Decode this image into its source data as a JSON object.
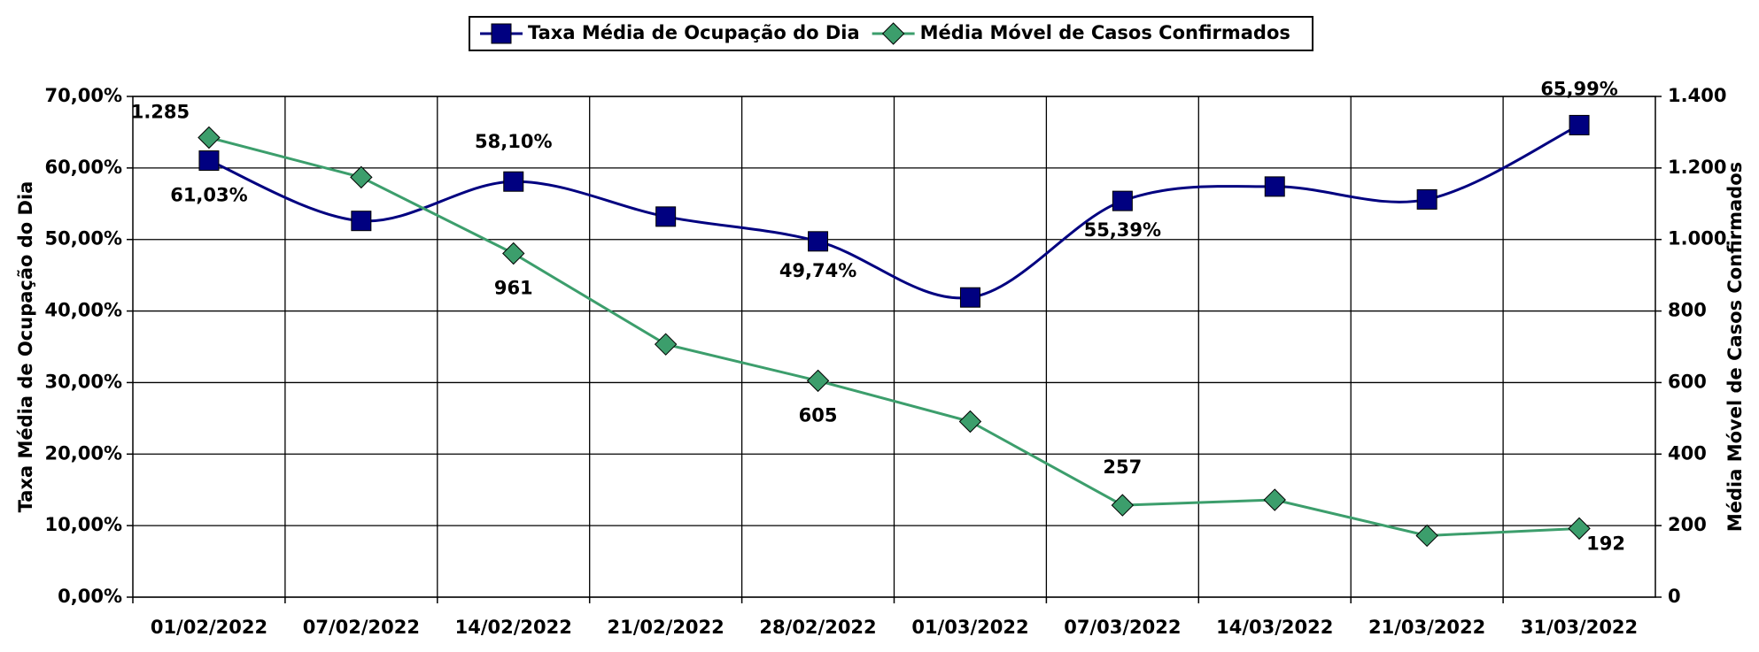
{
  "chart_data": {
    "type": "line",
    "legend": "top",
    "grid": true,
    "categories": [
      "01/02/2022",
      "07/02/2022",
      "14/02/2022",
      "21/02/2022",
      "28/02/2022",
      "01/03/2022",
      "07/03/2022",
      "14/03/2022",
      "21/03/2022",
      "31/03/2022"
    ],
    "y_label": "Taxa Média de Ocupação do Dia",
    "y2_label": "Média Móvel de Casos Confirmados",
    "ylim": [
      0,
      70
    ],
    "yticks": [
      {
        "value": 0,
        "label": "0,00%"
      },
      {
        "value": 10,
        "label": "10,00%"
      },
      {
        "value": 20,
        "label": "20,00%"
      },
      {
        "value": 30,
        "label": "30,00%"
      },
      {
        "value": 40,
        "label": "40,00%"
      },
      {
        "value": 50,
        "label": "50,00%"
      },
      {
        "value": 60,
        "label": "60,00%"
      },
      {
        "value": 70,
        "label": "70,00%"
      }
    ],
    "y2lim": [
      0,
      1400
    ],
    "y2ticks": [
      0,
      200,
      400,
      600,
      800,
      {
        "value": 1000,
        "label": "1.000"
      },
      {
        "value": 1200,
        "label": "1.200"
      },
      {
        "value": 1400,
        "label": "1.400"
      }
    ],
    "series": [
      {
        "name": "Taxa Média de Ocupação do Dia",
        "color": "#000080",
        "smooth": true,
        "marker": "square",
        "values": [
          61.03,
          52.6,
          58.1,
          53.2,
          49.74,
          41.9,
          55.39,
          57.4,
          55.6,
          65.99
        ],
        "value_labels": [
          "61,03%",
          null,
          "58,10%",
          null,
          "49,74%",
          null,
          "55,39%",
          null,
          null,
          "65,99%"
        ]
      },
      {
        "name": "Média Móvel de Casos Confirmados",
        "color": "#3c9e6c",
        "axis": "y2",
        "smooth": false,
        "marker": "diamond",
        "values": [
          1285,
          1174,
          961,
          707,
          605,
          491,
          257,
          272,
          172,
          192
        ],
        "value_labels": [
          "1.285",
          null,
          "961",
          null,
          "605",
          null,
          "257",
          null,
          null,
          "192"
        ]
      }
    ]
  }
}
